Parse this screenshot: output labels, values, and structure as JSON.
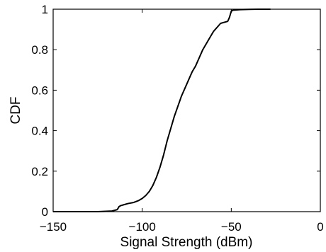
{
  "chart_data": {
    "type": "line",
    "title": "",
    "xlabel": "Signal Strength (dBm)",
    "ylabel": "CDF",
    "xlim": [
      -150,
      0
    ],
    "ylim": [
      0,
      1
    ],
    "xticks": [
      -150,
      -100,
      -50,
      0
    ],
    "xtick_labels": [
      "−150",
      "−100",
      "−50",
      "0"
    ],
    "yticks": [
      0,
      0.2,
      0.4,
      0.6,
      0.8,
      1
    ],
    "ytick_labels": [
      "0",
      "0.2",
      "0.4",
      "0.6",
      "0.8",
      "1"
    ],
    "grid": false,
    "legend": null,
    "series": [
      {
        "color": "#000000",
        "x": [
          -150,
          -125,
          -117,
          -114,
          -113,
          -112,
          -110,
          -108,
          -105,
          -102,
          -100,
          -98,
          -96,
          -94,
          -92,
          -90,
          -88,
          -86,
          -84,
          -82,
          -80,
          -78,
          -76,
          -74,
          -72,
          -70,
          -68,
          -66,
          -64,
          -62,
          -60,
          -58,
          -56,
          -54,
          -52,
          -51,
          -50,
          -49,
          -45,
          -40,
          -35,
          -28
        ],
        "y": [
          0,
          0,
          0.003,
          0.01,
          0.025,
          0.03,
          0.035,
          0.04,
          0.045,
          0.055,
          0.065,
          0.08,
          0.1,
          0.13,
          0.17,
          0.22,
          0.28,
          0.35,
          0.41,
          0.47,
          0.52,
          0.57,
          0.61,
          0.65,
          0.69,
          0.72,
          0.76,
          0.8,
          0.83,
          0.86,
          0.89,
          0.91,
          0.93,
          0.935,
          0.94,
          0.96,
          0.99,
          0.995,
          0.998,
          0.999,
          1.0,
          1.0
        ]
      }
    ]
  }
}
